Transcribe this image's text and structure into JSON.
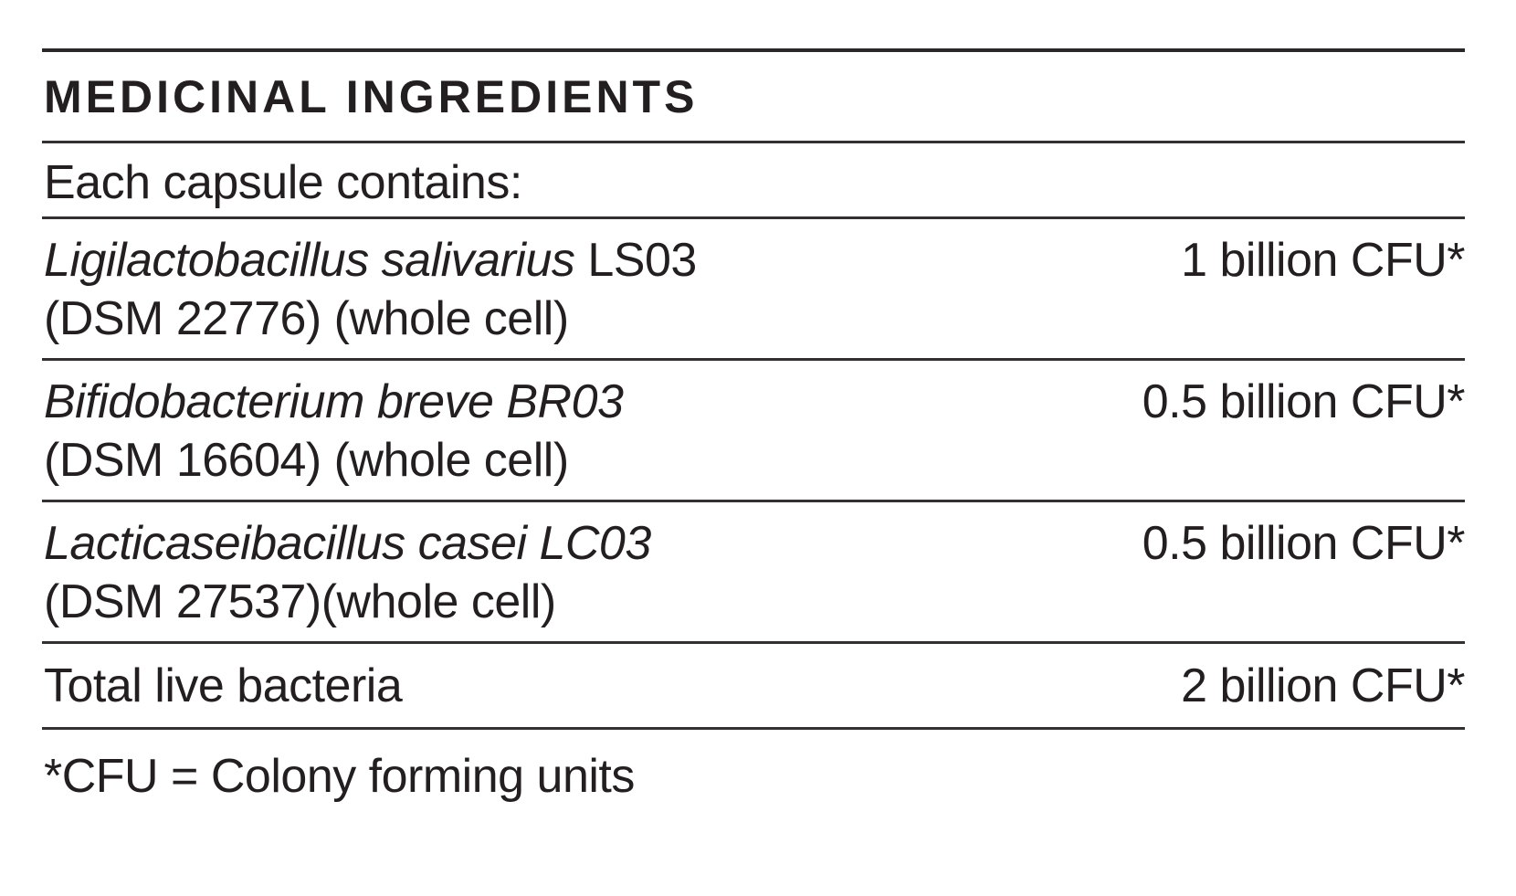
{
  "panel": {
    "title": "MEDICINAL INGREDIENTS",
    "subtitle": "Each capsule contains:",
    "rows": [
      {
        "name_italic": "Ligilactobacillus salivarius",
        "name_regular": " LS03",
        "detail": "(DSM 22776) (whole cell)",
        "amount": "1 billion CFU*"
      },
      {
        "name_italic": "Bifidobacterium breve BR03",
        "name_regular": "",
        "detail": "(DSM 16604) (whole cell)",
        "amount": "0.5 billion CFU*"
      },
      {
        "name_italic": "Lacticaseibacillus casei LC03",
        "name_regular": "",
        "detail": "(DSM 27537)(whole cell)",
        "amount": "0.5 billion CFU*"
      }
    ],
    "total": {
      "label": "Total live bacteria",
      "amount": "2 billion CFU*"
    },
    "footnote": "*CFU = Colony forming units"
  },
  "colors": {
    "text": "#231f20",
    "rule": "#333031",
    "rule_heavy": "#2a2728",
    "background": "#ffffff"
  }
}
